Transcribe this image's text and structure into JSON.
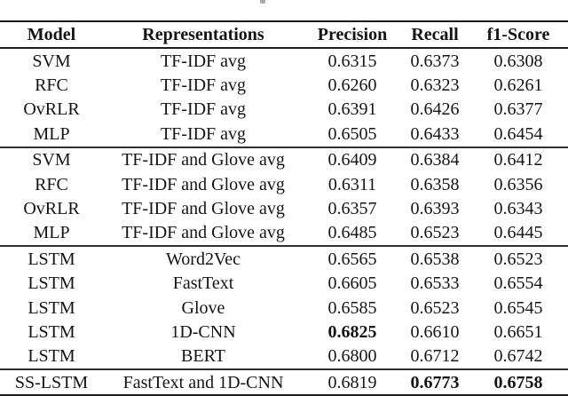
{
  "page": {
    "background": "#ffffff",
    "text_color": "#141414",
    "rule_color": "#1c1c1c"
  },
  "table": {
    "columns": [
      "Model",
      "Representations",
      "Precision",
      "Recall",
      "f1-Score"
    ],
    "groups": [
      {
        "rows": [
          {
            "model": "SVM",
            "representation": "TF-IDF avg",
            "precision": "0.6315",
            "recall": "0.6373",
            "f1": "0.6308"
          },
          {
            "model": "RFC",
            "representation": "TF-IDF avg",
            "precision": "0.6260",
            "recall": "0.6323",
            "f1": "0.6261"
          },
          {
            "model": "OvRLR",
            "representation": "TF-IDF avg",
            "precision": "0.6391",
            "recall": "0.6426",
            "f1": "0.6377"
          },
          {
            "model": "MLP",
            "representation": "TF-IDF avg",
            "precision": "0.6505",
            "recall": "0.6433",
            "f1": "0.6454"
          }
        ]
      },
      {
        "rows": [
          {
            "model": "SVM",
            "representation": "TF-IDF and Glove avg",
            "precision": "0.6409",
            "recall": "0.6384",
            "f1": "0.6412"
          },
          {
            "model": "RFC",
            "representation": "TF-IDF and Glove avg",
            "precision": "0.6311",
            "recall": "0.6358",
            "f1": "0.6356"
          },
          {
            "model": "OvRLR",
            "representation": "TF-IDF and Glove avg",
            "precision": "0.6357",
            "recall": "0.6393",
            "f1": "0.6343"
          },
          {
            "model": "MLP",
            "representation": "TF-IDF and Glove avg",
            "precision": "0.6485",
            "recall": "0.6523",
            "f1": "0.6445"
          }
        ]
      },
      {
        "rows": [
          {
            "model": "LSTM",
            "representation": "Word2Vec",
            "precision": "0.6565",
            "recall": "0.6538",
            "f1": "0.6523"
          },
          {
            "model": "LSTM",
            "representation": "FastText",
            "precision": "0.6605",
            "recall": "0.6533",
            "f1": "0.6554"
          },
          {
            "model": "LSTM",
            "representation": "Glove",
            "precision": "0.6585",
            "recall": "0.6523",
            "f1": "0.6545"
          },
          {
            "model": "LSTM",
            "representation": "1D-CNN",
            "precision": "0.6825",
            "recall": "0.6610",
            "f1": "0.6651"
          },
          {
            "model": "LSTM",
            "representation": "BERT",
            "precision": "0.6800",
            "recall": "0.6712",
            "f1": "0.6742"
          }
        ]
      },
      {
        "rows": [
          {
            "model": "SS-LSTM",
            "representation": "FastText and 1D-CNN",
            "precision": "0.6819",
            "recall": "0.6773",
            "f1": "0.6758"
          }
        ]
      }
    ]
  }
}
